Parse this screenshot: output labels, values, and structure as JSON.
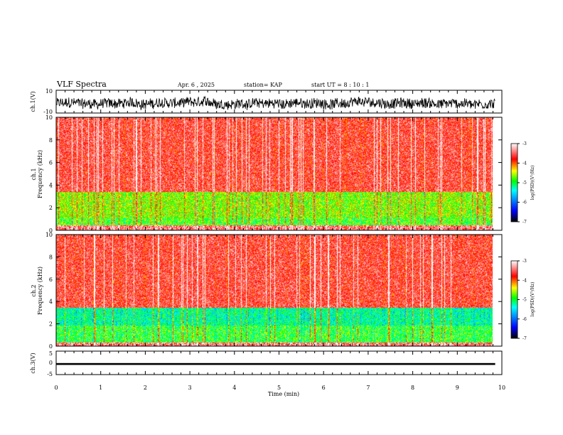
{
  "header": {
    "title": "VLF Spectra",
    "date": "Apr. 6 , 2025",
    "station": "station= KAP",
    "start": "start UT = 8 : 10 : 1"
  },
  "chart_data": [
    {
      "type": "line",
      "panel": "ch1-waveform",
      "ylabel": "ch.1(V)",
      "ylim": [
        -10,
        10
      ],
      "yticks": [
        "10",
        "-10"
      ],
      "description_values": "dense waveform filling roughly -8 to +5 V over the full 0–9.8 min span"
    },
    {
      "type": "heatmap",
      "panel": "ch1-spectrogram",
      "ylabel_line1": "ch.1",
      "ylabel_line2": "Frequency (kHz)",
      "ylim": [
        0,
        10
      ],
      "yticks": [
        "0",
        "2",
        "4",
        "6",
        "8",
        "10"
      ],
      "colorbar": {
        "label": "log(PSD)(V²/Hz)",
        "range": [
          -7,
          -3
        ],
        "ticks": [
          "-3",
          "-4",
          "-5",
          "-6",
          "-7"
        ]
      },
      "bands": [
        {
          "freq_kHz": [
            0.0,
            0.4
          ],
          "level": -3.4
        },
        {
          "freq_kHz": [
            0.4,
            1.1
          ],
          "level": -4.8
        },
        {
          "freq_kHz": [
            1.1,
            3.4
          ],
          "level": -4.6
        },
        {
          "freq_kHz": [
            3.4,
            10.0
          ],
          "level": -3.6
        }
      ]
    },
    {
      "type": "heatmap",
      "panel": "ch2-spectrogram",
      "ylabel_line1": "ch.2",
      "ylabel_line2": "Frequency (kHz)",
      "ylim": [
        0,
        10
      ],
      "yticks": [
        "0",
        "2",
        "4",
        "6",
        "8",
        "10"
      ],
      "colorbar": {
        "label": "log(PSD)(V²/Hz)",
        "range": [
          -7,
          -3
        ],
        "ticks": [
          "-3",
          "-4",
          "-5",
          "-6",
          "-7"
        ]
      },
      "bands": [
        {
          "freq_kHz": [
            0.0,
            0.3
          ],
          "level": -3.4
        },
        {
          "freq_kHz": [
            0.3,
            1.8
          ],
          "level": -4.9
        },
        {
          "freq_kHz": [
            1.8,
            3.4
          ],
          "level": -5.2
        },
        {
          "freq_kHz": [
            3.4,
            10.0
          ],
          "level": -3.6
        }
      ]
    },
    {
      "type": "line",
      "panel": "ch3-waveform",
      "ylabel": "ch.3(V)",
      "ylim": [
        -5,
        5
      ],
      "yticks": [
        "5",
        "0",
        "-5"
      ],
      "mean_V": -0.5,
      "amplitude_V": 0.4
    }
  ],
  "xaxis": {
    "label": "Time (min)",
    "xlim": [
      0,
      10
    ],
    "ticks": [
      "0",
      "1",
      "2",
      "3",
      "4",
      "5",
      "6",
      "7",
      "8",
      "9",
      "10"
    ],
    "data_end_min": 9.85
  },
  "colors": {
    "high": "#ff0000",
    "mid_high": "#ffff00",
    "mid": "#00ff00",
    "low": "#0000ff",
    "lowest": "#000000"
  }
}
